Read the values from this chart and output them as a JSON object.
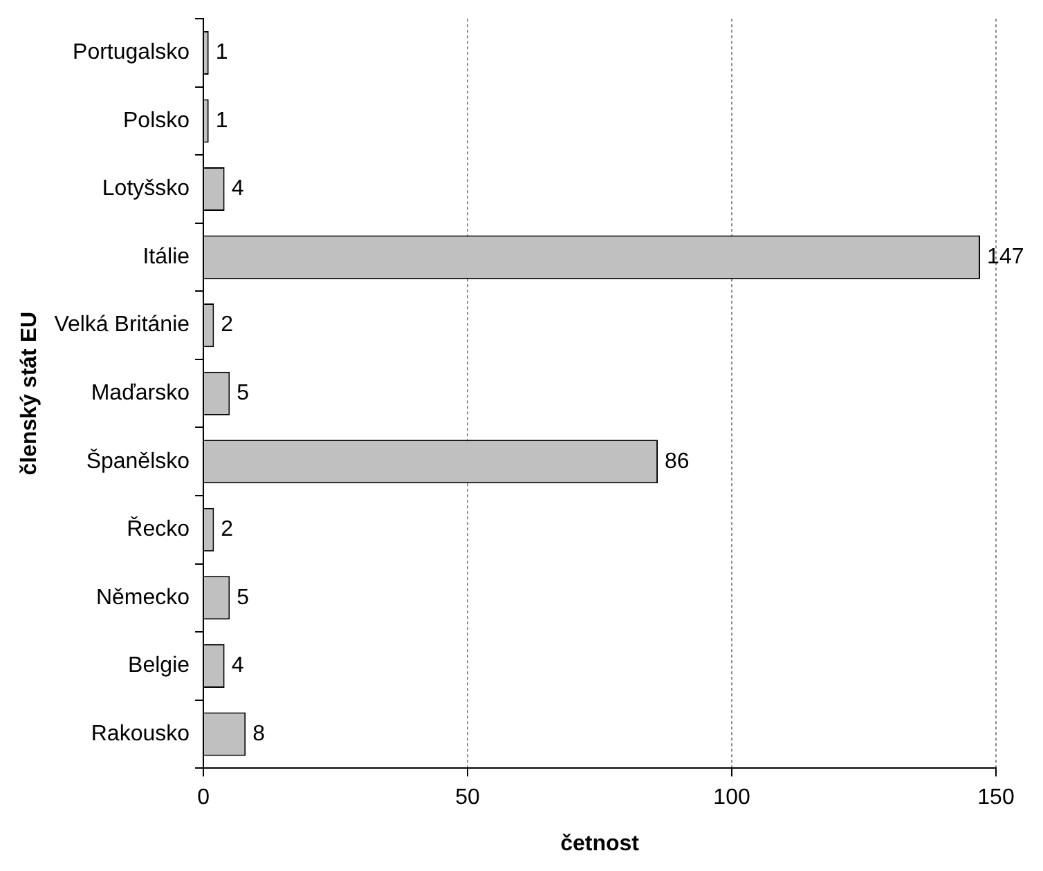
{
  "chart_data": {
    "type": "bar",
    "orientation": "horizontal",
    "xlabel": "četnost",
    "ylabel": "členský stát EU",
    "categories": [
      "Portugalsko",
      "Polsko",
      "Lotyšsko",
      "Itálie",
      "Velká Británie",
      "Maďarsko",
      "Španělsko",
      "Řecko",
      "Německo",
      "Belgie",
      "Rakousko"
    ],
    "values": [
      1,
      1,
      4,
      147,
      2,
      5,
      86,
      2,
      5,
      4,
      8
    ],
    "color": "#c0c0c0",
    "xlim": [
      0,
      150
    ],
    "xticks": [
      0,
      50,
      100,
      150
    ],
    "grid": "x",
    "data_labels": true,
    "legend": false
  }
}
